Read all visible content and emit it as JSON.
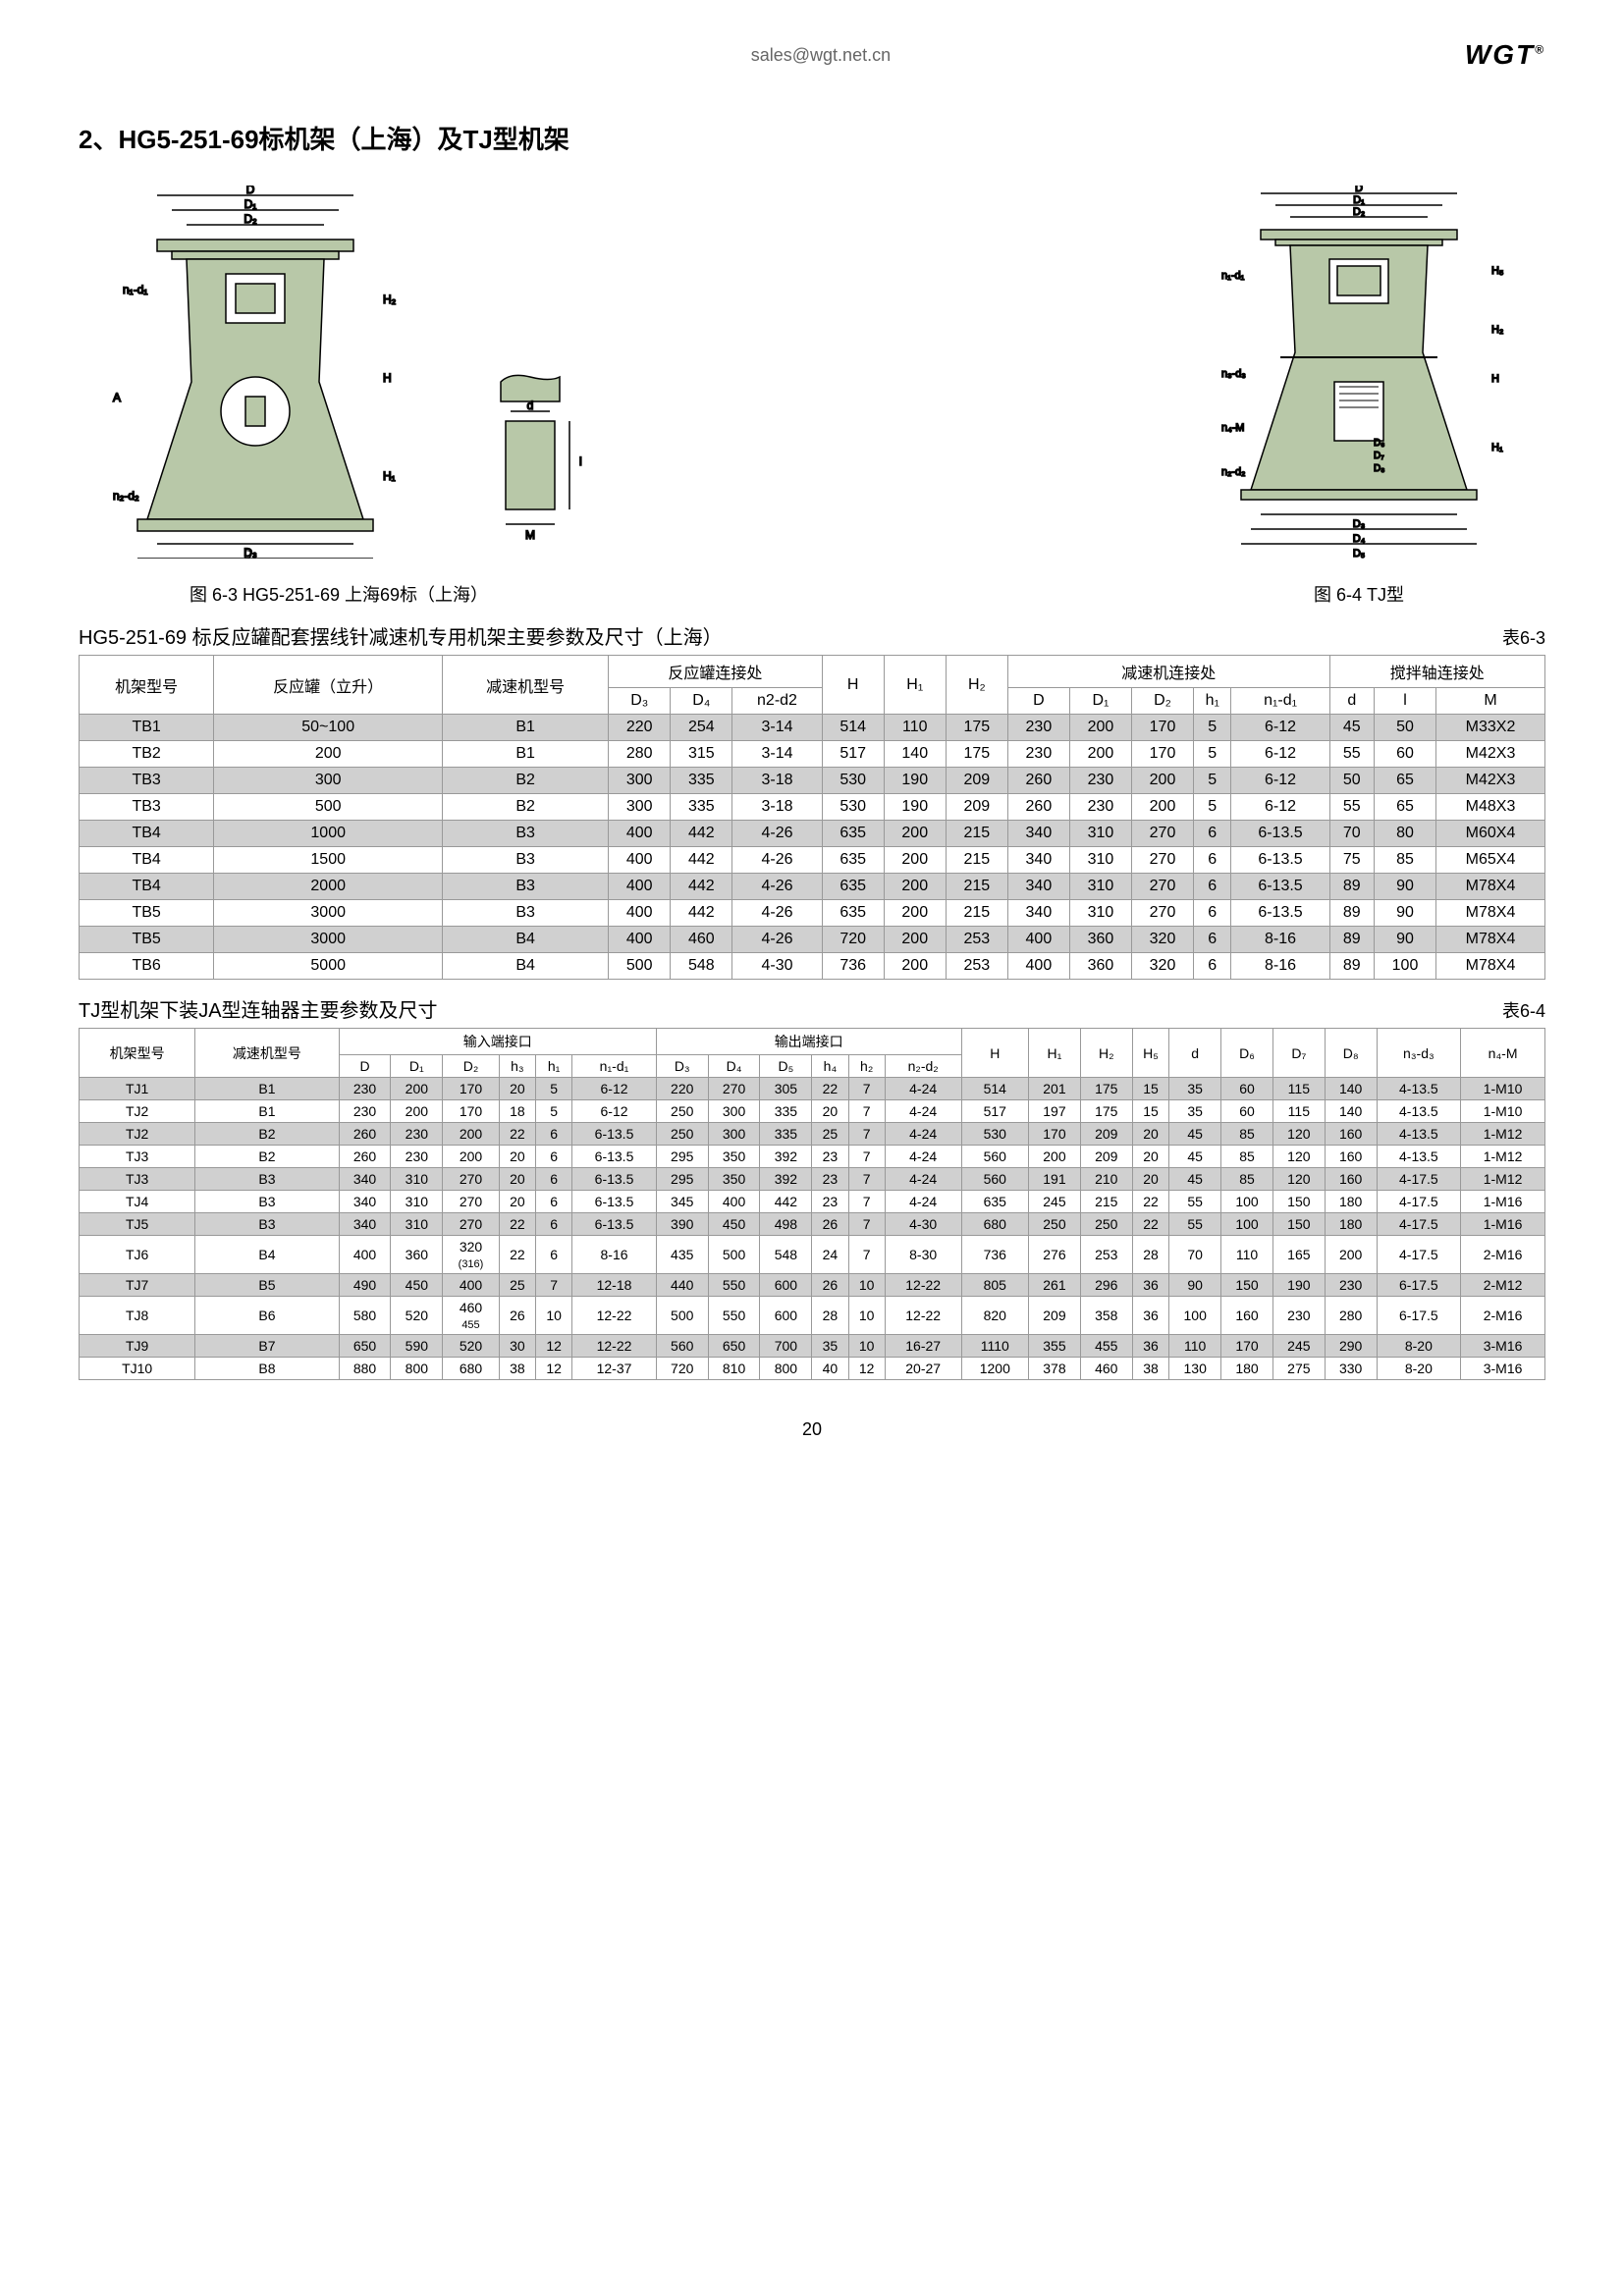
{
  "header": {
    "email": "sales@wgt.net.cn",
    "logo": "WGT"
  },
  "section_title": "2、HG5-251-69标机架（上海）及TJ型机架",
  "captions": {
    "fig63": "图 6-3 HG5-251-69  上海69标（上海）",
    "fig64": "图 6-4 TJ型"
  },
  "table1": {
    "title": "HG5-251-69 标反应罐配套摆线针减速机专用机架主要参数及尺寸（上海）",
    "number": "表6-3",
    "header_groups": {
      "frame": "机架型号",
      "reactor": "反应罐（立升）",
      "reducer": "减速机型号",
      "reactor_conn": "反应罐连接处",
      "H": "H",
      "H1": "H₁",
      "H2": "H₂",
      "reducer_conn": "减速机连接处",
      "shaft_conn": "搅拌轴连接处"
    },
    "sub_headers": {
      "D3": "D₃",
      "D4": "D₄",
      "n2d2": "n2-d2",
      "D": "D",
      "D1": "D₁",
      "D2": "D₂",
      "h1": "h₁",
      "n1d1": "n₁-d₁",
      "d": "d",
      "l": "l",
      "M": "M"
    },
    "rows": [
      [
        "TB1",
        "50~100",
        "B1",
        "220",
        "254",
        "3-14",
        "514",
        "110",
        "175",
        "230",
        "200",
        "170",
        "5",
        "6-12",
        "45",
        "50",
        "M33X2"
      ],
      [
        "TB2",
        "200",
        "B1",
        "280",
        "315",
        "3-14",
        "517",
        "140",
        "175",
        "230",
        "200",
        "170",
        "5",
        "6-12",
        "55",
        "60",
        "M42X3"
      ],
      [
        "TB3",
        "300",
        "B2",
        "300",
        "335",
        "3-18",
        "530",
        "190",
        "209",
        "260",
        "230",
        "200",
        "5",
        "6-12",
        "50",
        "65",
        "M42X3"
      ],
      [
        "TB3",
        "500",
        "B2",
        "300",
        "335",
        "3-18",
        "530",
        "190",
        "209",
        "260",
        "230",
        "200",
        "5",
        "6-12",
        "55",
        "65",
        "M48X3"
      ],
      [
        "TB4",
        "1000",
        "B3",
        "400",
        "442",
        "4-26",
        "635",
        "200",
        "215",
        "340",
        "310",
        "270",
        "6",
        "6-13.5",
        "70",
        "80",
        "M60X4"
      ],
      [
        "TB4",
        "1500",
        "B3",
        "400",
        "442",
        "4-26",
        "635",
        "200",
        "215",
        "340",
        "310",
        "270",
        "6",
        "6-13.5",
        "75",
        "85",
        "M65X4"
      ],
      [
        "TB4",
        "2000",
        "B3",
        "400",
        "442",
        "4-26",
        "635",
        "200",
        "215",
        "340",
        "310",
        "270",
        "6",
        "6-13.5",
        "89",
        "90",
        "M78X4"
      ],
      [
        "TB5",
        "3000",
        "B3",
        "400",
        "442",
        "4-26",
        "635",
        "200",
        "215",
        "340",
        "310",
        "270",
        "6",
        "6-13.5",
        "89",
        "90",
        "M78X4"
      ],
      [
        "TB5",
        "3000",
        "B4",
        "400",
        "460",
        "4-26",
        "720",
        "200",
        "253",
        "400",
        "360",
        "320",
        "6",
        "8-16",
        "89",
        "90",
        "M78X4"
      ],
      [
        "TB6",
        "5000",
        "B4",
        "500",
        "548",
        "4-30",
        "736",
        "200",
        "253",
        "400",
        "360",
        "320",
        "6",
        "8-16",
        "89",
        "100",
        "M78X4"
      ]
    ],
    "alt_rows": [
      0,
      2,
      4,
      6,
      8
    ]
  },
  "table2": {
    "title": "TJ型机架下装JA型连轴器主要参数及尺寸",
    "number": "表6-4",
    "header_groups": {
      "frame": "机架型号",
      "reducer": "减速机型号",
      "input": "输入端接口",
      "output": "输出端接口",
      "H": "H",
      "H1": "H₁",
      "H2": "H₂",
      "H5": "H₅",
      "d": "d",
      "D6": "D₆",
      "D7": "D₇",
      "D8": "D₈",
      "n3d3": "n₃-d₃",
      "n4M": "n₄-M"
    },
    "sub_headers": {
      "D": "D",
      "D1": "D₁",
      "D2": "D₂",
      "h3": "h₃",
      "h1": "h₁",
      "n1d1": "n₁-d₁",
      "D3": "D₃",
      "D4": "D₄",
      "D5": "D₅",
      "h4": "h₄",
      "h2": "h₂",
      "n2d2": "n₂-d₂"
    },
    "rows": [
      [
        "TJ1",
        "B1",
        "230",
        "200",
        "170",
        "20",
        "5",
        "6-12",
        "220",
        "270",
        "305",
        "22",
        "7",
        "4-24",
        "514",
        "201",
        "175",
        "15",
        "35",
        "60",
        "115",
        "140",
        "4-13.5",
        "1-M10"
      ],
      [
        "TJ2",
        "B1",
        "230",
        "200",
        "170",
        "18",
        "5",
        "6-12",
        "250",
        "300",
        "335",
        "20",
        "7",
        "4-24",
        "517",
        "197",
        "175",
        "15",
        "35",
        "60",
        "115",
        "140",
        "4-13.5",
        "1-M10"
      ],
      [
        "TJ2",
        "B2",
        "260",
        "230",
        "200",
        "22",
        "6",
        "6-13.5",
        "250",
        "300",
        "335",
        "25",
        "7",
        "4-24",
        "530",
        "170",
        "209",
        "20",
        "45",
        "85",
        "120",
        "160",
        "4-13.5",
        "1-M12"
      ],
      [
        "TJ3",
        "B2",
        "260",
        "230",
        "200",
        "20",
        "6",
        "6-13.5",
        "295",
        "350",
        "392",
        "23",
        "7",
        "4-24",
        "560",
        "200",
        "209",
        "20",
        "45",
        "85",
        "120",
        "160",
        "4-13.5",
        "1-M12"
      ],
      [
        "TJ3",
        "B3",
        "340",
        "310",
        "270",
        "20",
        "6",
        "6-13.5",
        "295",
        "350",
        "392",
        "23",
        "7",
        "4-24",
        "560",
        "191",
        "210",
        "20",
        "45",
        "85",
        "120",
        "160",
        "4-17.5",
        "1-M12"
      ],
      [
        "TJ4",
        "B3",
        "340",
        "310",
        "270",
        "20",
        "6",
        "6-13.5",
        "345",
        "400",
        "442",
        "23",
        "7",
        "4-24",
        "635",
        "245",
        "215",
        "22",
        "55",
        "100",
        "150",
        "180",
        "4-17.5",
        "1-M16"
      ],
      [
        "TJ5",
        "B3",
        "340",
        "310",
        "270",
        "22",
        "6",
        "6-13.5",
        "390",
        "450",
        "498",
        "26",
        "7",
        "4-30",
        "680",
        "250",
        "250",
        "22",
        "55",
        "100",
        "150",
        "180",
        "4-17.5",
        "1-M16"
      ],
      [
        "TJ6",
        "B4",
        "400",
        "360",
        "320\n(316)",
        "22",
        "6",
        "8-16",
        "435",
        "500",
        "548",
        "24",
        "7",
        "8-30",
        "736",
        "276",
        "253",
        "28",
        "70",
        "110",
        "165",
        "200",
        "4-17.5",
        "2-M16"
      ],
      [
        "TJ7",
        "B5",
        "490",
        "450",
        "400",
        "25",
        "7",
        "12-18",
        "440",
        "550",
        "600",
        "26",
        "10",
        "12-22",
        "805",
        "261",
        "296",
        "36",
        "90",
        "150",
        "190",
        "230",
        "6-17.5",
        "2-M12"
      ],
      [
        "TJ8",
        "B6",
        "580",
        "520",
        "460\n455",
        "26",
        "10",
        "12-22",
        "500",
        "550",
        "600",
        "28",
        "10",
        "12-22",
        "820",
        "209",
        "358",
        "36",
        "100",
        "160",
        "230",
        "280",
        "6-17.5",
        "2-M16"
      ],
      [
        "TJ9",
        "B7",
        "650",
        "590",
        "520",
        "30",
        "12",
        "12-22",
        "560",
        "650",
        "700",
        "35",
        "10",
        "16-27",
        "1110",
        "355",
        "455",
        "36",
        "110",
        "170",
        "245",
        "290",
        "8-20",
        "3-M16"
      ],
      [
        "TJ10",
        "B8",
        "880",
        "800",
        "680",
        "38",
        "12",
        "12-37",
        "720",
        "810",
        "800",
        "40",
        "12",
        "20-27",
        "1200",
        "378",
        "460",
        "38",
        "130",
        "180",
        "275",
        "330",
        "8-20",
        "3-M16"
      ]
    ],
    "alt_rows": [
      0,
      2,
      4,
      6,
      8,
      10
    ]
  },
  "page_number": "20",
  "diagram_labels": {
    "left": [
      "D",
      "D₁",
      "D₂",
      "n₁-d₁",
      "A",
      "n₂-d₂",
      "D₃",
      "D₄",
      "H",
      "H₁",
      "H₂",
      "h₁"
    ],
    "middle": [
      "d",
      "M"
    ],
    "right": [
      "D",
      "D₁",
      "D₂",
      "n₁-d₁",
      "n₃-d₃",
      "n₄-M",
      "n₂-d₂",
      "D₃",
      "D₄",
      "D₅",
      "D₆",
      "D₇",
      "D₈",
      "H",
      "H₁",
      "H₂",
      "H₅",
      "h₁",
      "h₂",
      "h₃",
      "h₄"
    ]
  },
  "colors": {
    "diagram_fill": "#b8c8a8",
    "diagram_stroke": "#000000",
    "alt_row": "#d0d0d0",
    "border": "#999999"
  }
}
